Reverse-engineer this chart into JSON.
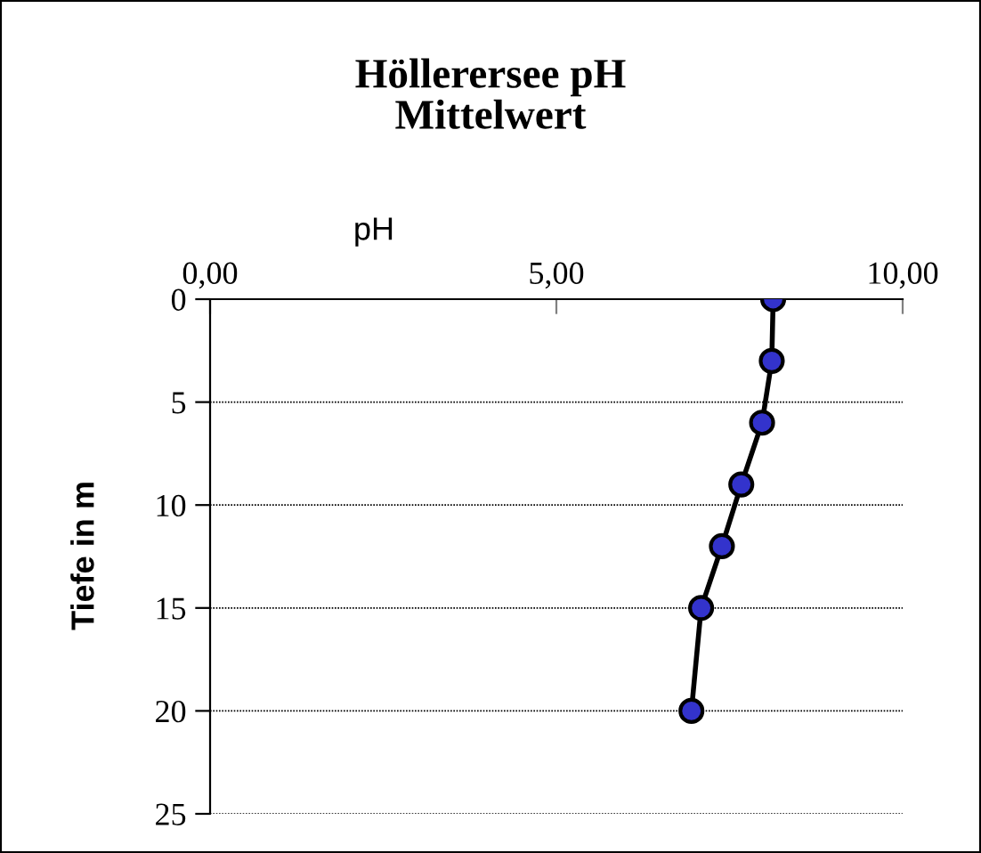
{
  "chart_data": {
    "type": "line",
    "title": "Höllerersee pH\nMittelwert",
    "xlabel": "pH",
    "ylabel": "Tiefe in m",
    "series": [
      {
        "color": "#3333cc",
        "x": [
          8.13,
          8.11,
          7.97,
          7.67,
          7.39,
          7.09,
          6.95
        ],
        "values": [
          0,
          3,
          6,
          9,
          12,
          15,
          20
        ]
      }
    ],
    "xlim": [
      0,
      10
    ],
    "xticks": [
      {
        "value": 0,
        "label": "0,00"
      },
      {
        "value": 5,
        "label": "5,00"
      },
      {
        "value": 10,
        "label": "10,00"
      }
    ],
    "ylim": [
      25,
      0
    ],
    "yticks": [
      0,
      5,
      10,
      15,
      20,
      25
    ],
    "grid": "y",
    "marker": "circle",
    "line_style": "solid"
  }
}
